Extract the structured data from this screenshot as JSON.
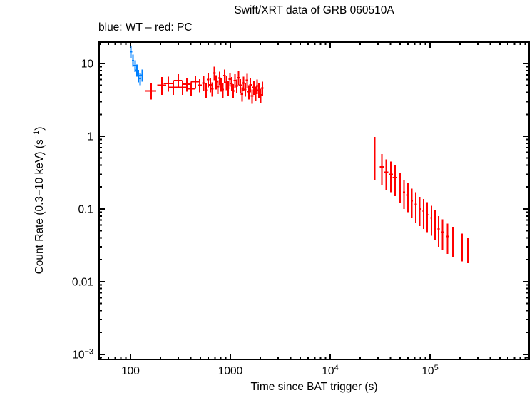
{
  "page": {
    "background": "#ffffff"
  },
  "colors": {
    "frame": "#000000",
    "text": "#000000",
    "wt_blue": "#0080ff",
    "pc_red": "#ff0000"
  },
  "chart_data": {
    "type": "scatter",
    "title": "Swift/XRT data of GRB 060510A",
    "subtitle": "blue: WT – red: PC",
    "xlabel": "Time since BAT trigger (s)",
    "ylabel_pre": "Count Rate (0.3−10 keV) (s",
    "ylabel_sup": "−1",
    "ylabel_post": ")",
    "grid": false,
    "legend_position": "none",
    "x_axis": {
      "scale": "log",
      "min": 48.5,
      "max": 984000,
      "major_ticks": [
        {
          "value": 100,
          "base": "100",
          "exp": ""
        },
        {
          "value": 1000,
          "base": "1000",
          "exp": ""
        },
        {
          "value": 10000,
          "base": "10",
          "exp": "4"
        },
        {
          "value": 100000,
          "base": "10",
          "exp": "5"
        }
      ]
    },
    "y_axis": {
      "scale": "log",
      "min": 0.00085,
      "max": 19.7,
      "major_ticks": [
        {
          "value": 10,
          "base": "10",
          "exp": ""
        },
        {
          "value": 1,
          "base": "1",
          "exp": ""
        },
        {
          "value": 0.1,
          "base": "0.1",
          "exp": ""
        },
        {
          "value": 0.01,
          "base": "0.01",
          "exp": ""
        },
        {
          "value": 0.001,
          "base": "10",
          "exp": "−3"
        }
      ]
    },
    "point_format": [
      "time_s",
      "time_err_s",
      "rate_cps",
      "rate_err_lo",
      "rate_err_hi"
    ],
    "series": [
      {
        "name": "WT",
        "color": "#0080ff",
        "points": [
          [
            101,
            3,
            14.5,
            2.8,
            3.0
          ],
          [
            106,
            3,
            11.0,
            2.0,
            2.2
          ],
          [
            111,
            3,
            9.3,
            1.7,
            1.8
          ],
          [
            116,
            3,
            8.1,
            1.5,
            1.6
          ],
          [
            120,
            3,
            6.8,
            1.3,
            1.4
          ],
          [
            125,
            3,
            6.2,
            1.2,
            1.3
          ],
          [
            131,
            4,
            6.9,
            1.3,
            1.4
          ]
        ]
      },
      {
        "name": "PC",
        "color": "#ff0000",
        "points": [
          [
            161,
            20,
            4.2,
            1.0,
            1.1
          ],
          [
            206,
            21,
            5.0,
            1.3,
            1.5
          ],
          [
            239,
            24,
            5.3,
            1.2,
            1.3
          ],
          [
            268,
            27,
            4.7,
            1.0,
            1.1
          ],
          [
            300,
            30,
            5.8,
            1.2,
            1.3
          ],
          [
            333,
            33,
            4.7,
            1.0,
            1.0
          ],
          [
            366,
            37,
            5.2,
            1.1,
            1.1
          ],
          [
            405,
            40,
            4.5,
            0.9,
            1.0
          ],
          [
            447,
            45,
            5.6,
            1.1,
            1.2
          ],
          [
            493,
            25,
            5.0,
            1.0,
            1.1
          ],
          [
            540,
            16,
            5.4,
            1.2,
            1.3
          ],
          [
            570,
            17,
            4.3,
            1.0,
            1.1
          ],
          [
            600,
            18,
            6.0,
            1.3,
            1.4
          ],
          [
            630,
            19,
            5.1,
            1.1,
            1.2
          ],
          [
            660,
            20,
            4.5,
            1.0,
            1.0
          ],
          [
            690,
            21,
            7.4,
            1.5,
            1.6
          ],
          [
            720,
            22,
            5.6,
            1.2,
            1.3
          ],
          [
            750,
            22,
            4.8,
            1.0,
            1.1
          ],
          [
            780,
            23,
            6.3,
            1.3,
            1.4
          ],
          [
            810,
            24,
            5.2,
            1.1,
            1.2
          ],
          [
            840,
            25,
            4.4,
            1.0,
            1.0
          ],
          [
            875,
            26,
            6.8,
            1.4,
            1.5
          ],
          [
            910,
            27,
            5.5,
            1.2,
            1.2
          ],
          [
            950,
            28,
            4.6,
            1.0,
            1.1
          ],
          [
            990,
            30,
            6.1,
            1.3,
            1.4
          ],
          [
            1030,
            31,
            5.3,
            1.1,
            1.2
          ],
          [
            1070,
            32,
            4.2,
            0.9,
            1.0
          ],
          [
            1110,
            33,
            5.8,
            1.2,
            1.3
          ],
          [
            1160,
            35,
            4.9,
            1.0,
            1.1
          ],
          [
            1210,
            36,
            6.4,
            1.4,
            1.5
          ],
          [
            1260,
            38,
            5.0,
            1.1,
            1.1
          ],
          [
            1310,
            39,
            3.8,
            0.8,
            0.9
          ],
          [
            1360,
            41,
            5.4,
            1.2,
            1.2
          ],
          [
            1410,
            42,
            4.4,
            0.9,
            1.0
          ],
          [
            1470,
            44,
            5.9,
            1.3,
            1.3
          ],
          [
            1530,
            46,
            4.1,
            0.9,
            0.9
          ],
          [
            1590,
            48,
            5.1,
            1.1,
            1.1
          ],
          [
            1650,
            50,
            3.6,
            0.8,
            0.8
          ],
          [
            1720,
            52,
            4.7,
            1.0,
            1.0
          ],
          [
            1790,
            54,
            3.9,
            0.8,
            0.9
          ],
          [
            1860,
            56,
            4.9,
            1.1,
            1.1
          ],
          [
            1930,
            58,
            4.3,
            0.9,
            1.0
          ],
          [
            2010,
            60,
            3.7,
            0.8,
            0.8
          ],
          [
            2090,
            63,
            4.6,
            1.0,
            1.0
          ],
          [
            28000,
            400,
            0.55,
            0.3,
            0.43
          ],
          [
            33000,
            1600,
            0.38,
            0.17,
            0.19
          ],
          [
            36500,
            1800,
            0.32,
            0.14,
            0.16
          ],
          [
            40500,
            2000,
            0.3,
            0.13,
            0.15
          ],
          [
            44500,
            2200,
            0.27,
            0.12,
            0.13
          ],
          [
            50000,
            1200,
            0.21,
            0.09,
            0.1
          ],
          [
            55000,
            1300,
            0.17,
            0.07,
            0.08
          ],
          [
            60000,
            1400,
            0.155,
            0.065,
            0.07
          ],
          [
            66000,
            1600,
            0.13,
            0.055,
            0.06
          ],
          [
            72000,
            1700,
            0.115,
            0.05,
            0.055
          ],
          [
            79000,
            1900,
            0.1,
            0.042,
            0.047
          ],
          [
            86000,
            2000,
            0.093,
            0.04,
            0.044
          ],
          [
            94000,
            2200,
            0.083,
            0.035,
            0.04
          ],
          [
            103000,
            2500,
            0.075,
            0.032,
            0.036
          ],
          [
            112000,
            2700,
            0.065,
            0.028,
            0.032
          ],
          [
            122000,
            2900,
            0.053,
            0.023,
            0.027
          ],
          [
            133000,
            3200,
            0.048,
            0.021,
            0.024
          ],
          [
            150000,
            3600,
            0.042,
            0.018,
            0.021
          ],
          [
            170000,
            2000,
            0.038,
            0.016,
            0.019
          ],
          [
            210000,
            2500,
            0.031,
            0.012,
            0.015
          ],
          [
            240000,
            2800,
            0.027,
            0.009,
            0.013
          ]
        ]
      }
    ]
  }
}
